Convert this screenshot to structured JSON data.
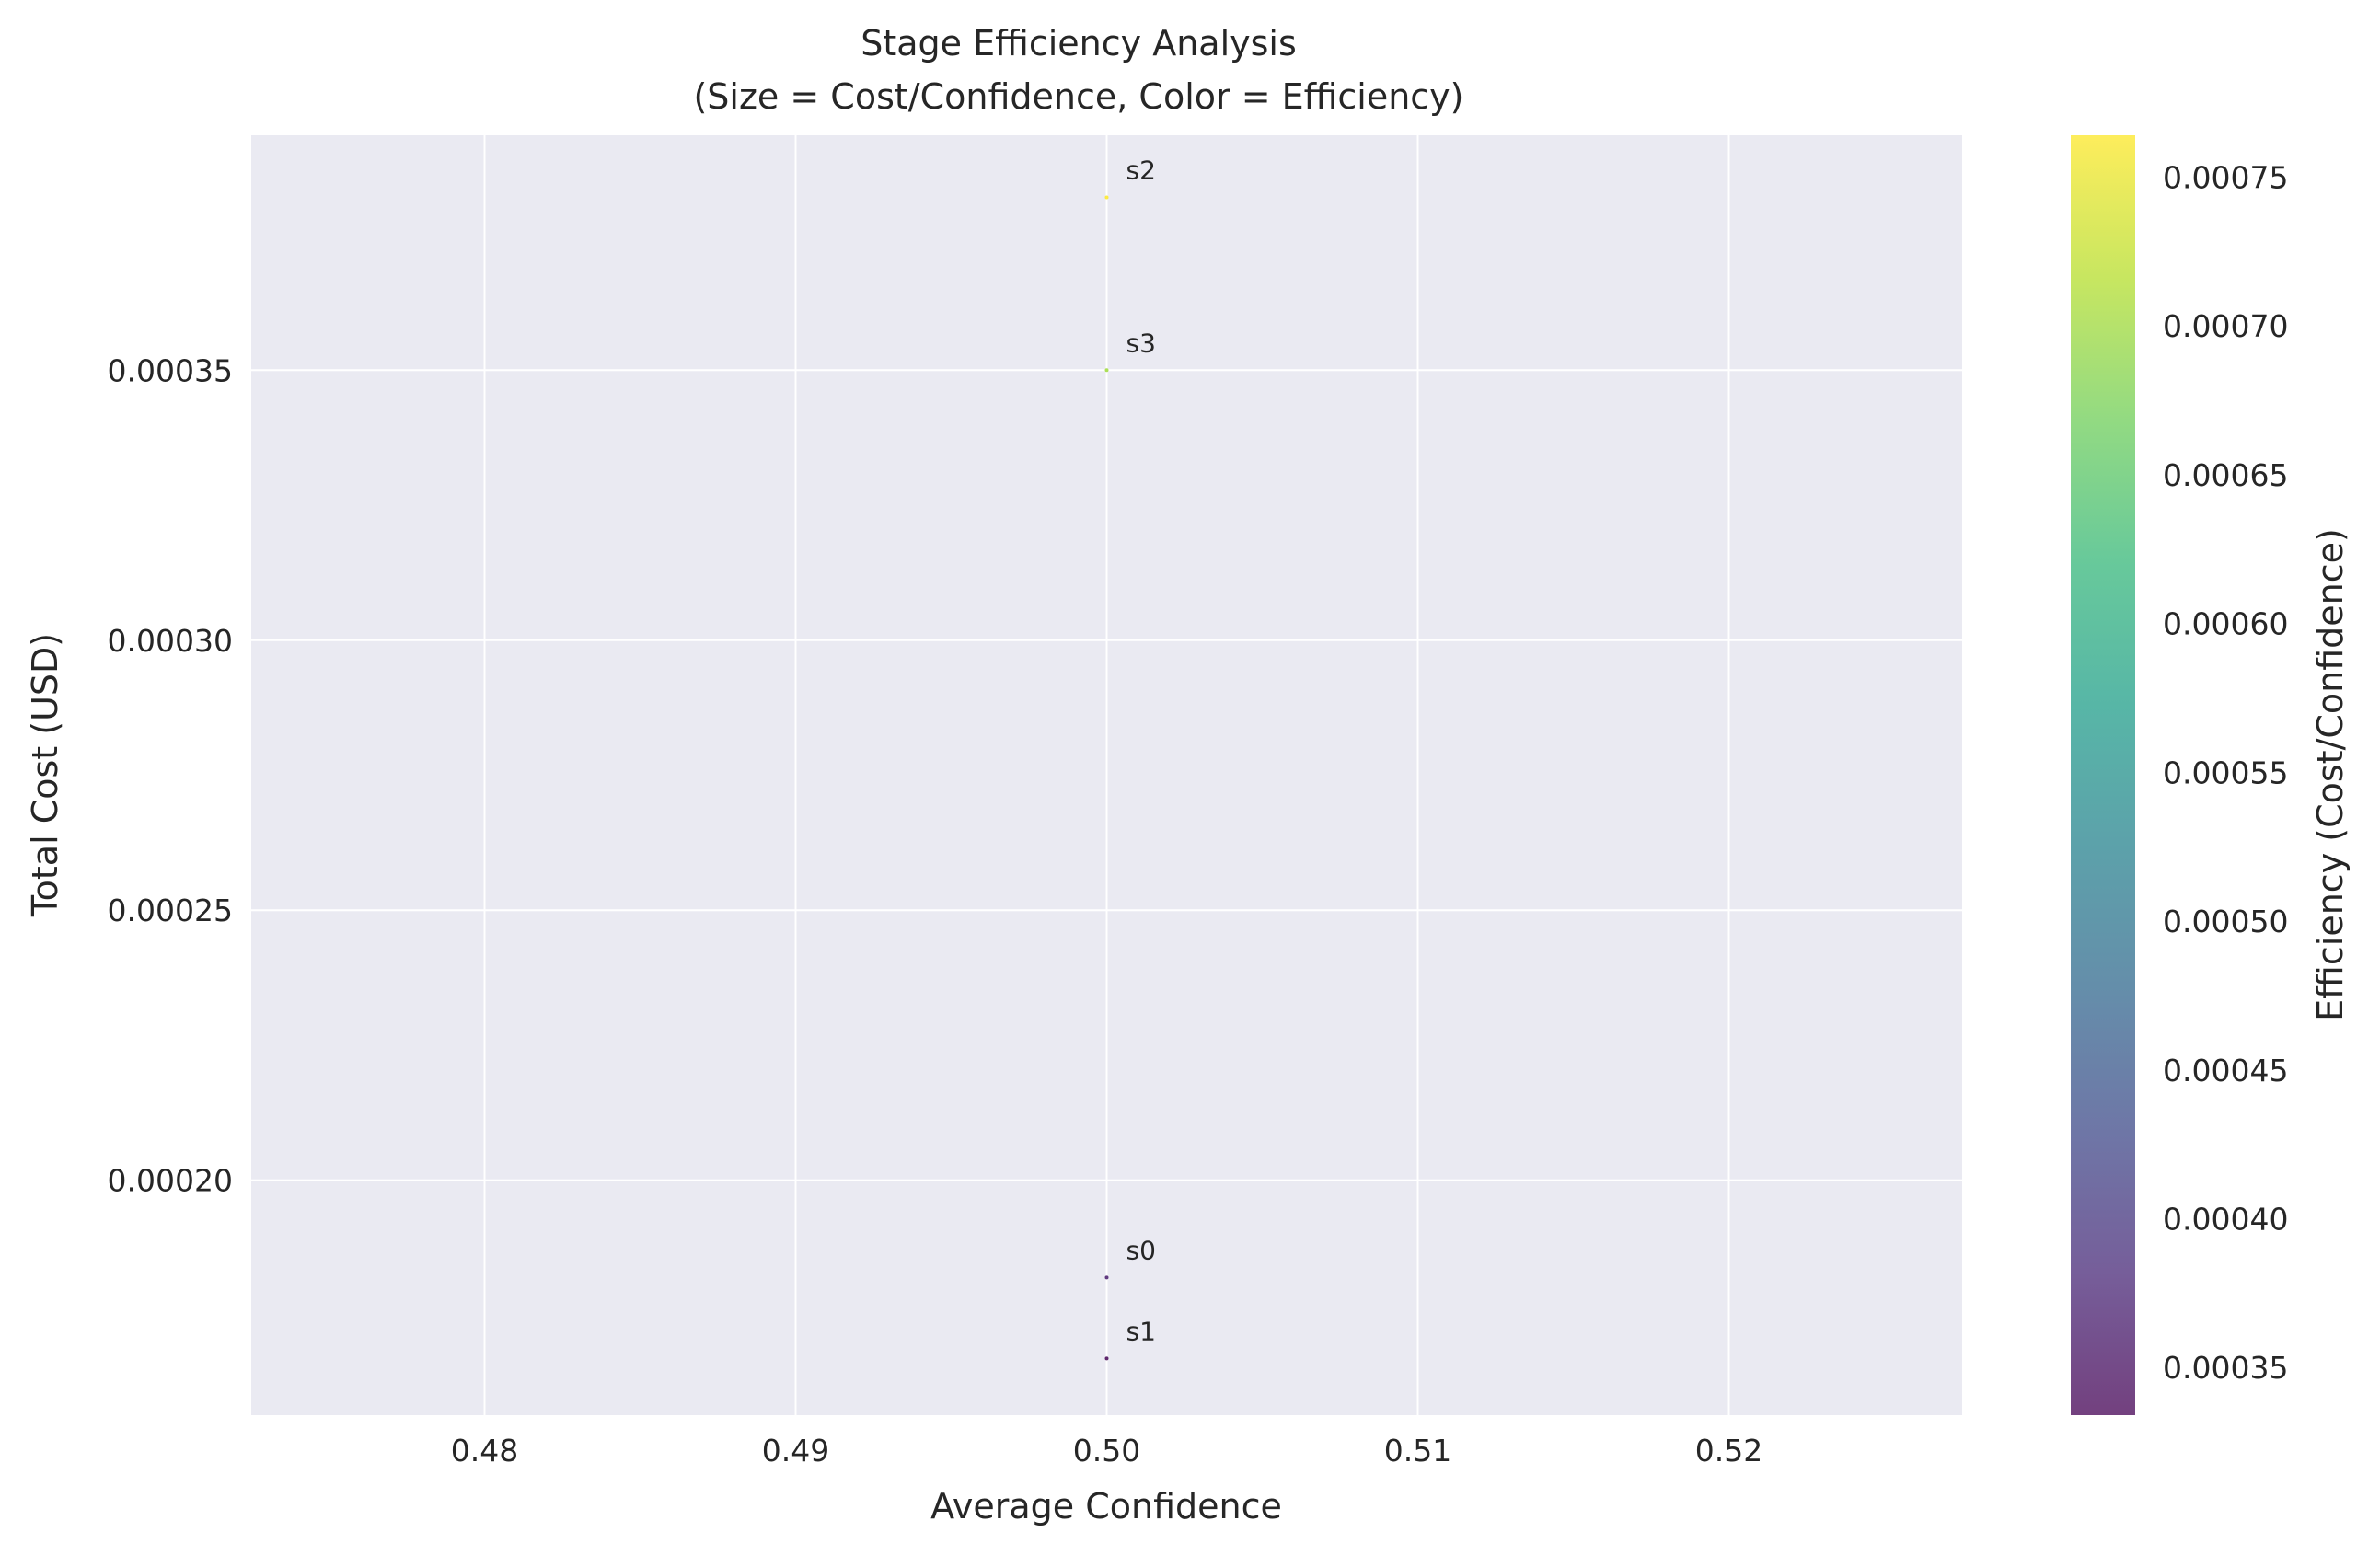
{
  "chart_data": {
    "type": "scatter",
    "title": "Stage Efficiency Analysis",
    "subtitle": "(Size = Cost/Confidence, Color = Efficiency)",
    "xlabel": "Average Confidence",
    "ylabel": "Total Cost (USD)",
    "xlim": [
      0.4725,
      0.5275
    ],
    "ylim": [
      0.0001565,
      0.0003935
    ],
    "xticks": [
      0.48,
      0.49,
      0.5,
      0.51,
      0.52
    ],
    "xtick_labels": [
      "0.48",
      "0.49",
      "0.50",
      "0.51",
      "0.52"
    ],
    "yticks": [
      0.0002,
      0.00025,
      0.0003,
      0.00035
    ],
    "ytick_labels": [
      "0.00020",
      "0.00025",
      "0.00030",
      "0.00035"
    ],
    "grid": true,
    "background": "#eaeaf2",
    "points": [
      {
        "label": "s0",
        "x": 0.5,
        "y": 0.000182,
        "efficiency": 0.000364
      },
      {
        "label": "s1",
        "x": 0.5,
        "y": 0.000167,
        "efficiency": 0.000334
      },
      {
        "label": "s2",
        "x": 0.5,
        "y": 0.000382,
        "efficiency": 0.000764
      },
      {
        "label": "s3",
        "x": 0.5,
        "y": 0.00035,
        "efficiency": 0.0007
      }
    ],
    "colorbar": {
      "label": "Efficiency (Cost/Confidence)",
      "colormap": "viridis",
      "range": [
        0.000334,
        0.000764
      ],
      "ticks": [
        0.00035,
        0.0004,
        0.00045,
        0.0005,
        0.00055,
        0.0006,
        0.00065,
        0.0007,
        0.00075
      ],
      "tick_labels": [
        "0.00035",
        "0.00040",
        "0.00045",
        "0.00050",
        "0.00055",
        "0.00060",
        "0.00065",
        "0.00070",
        "0.00075"
      ],
      "colors": [
        "#440154",
        "#482878",
        "#3e4989",
        "#31688e",
        "#26828e",
        "#1f9e89",
        "#35b779",
        "#6ece58",
        "#b5de2b",
        "#fde725"
      ]
    }
  }
}
